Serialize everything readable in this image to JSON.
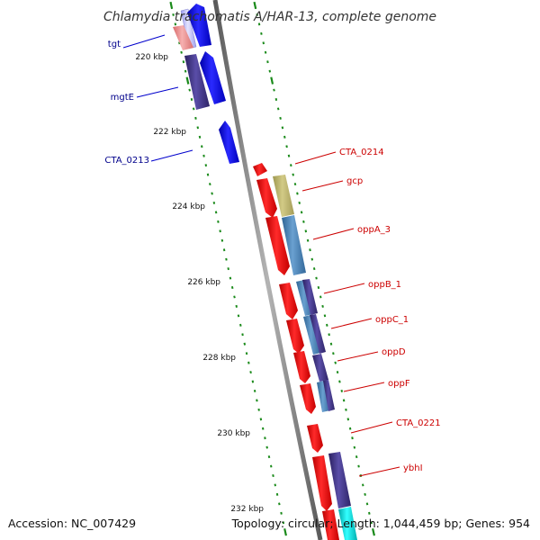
{
  "title": "Chlamydia trachomatis A/HAR-13, complete genome",
  "footer": {
    "accession": "Accession: NC_007429",
    "topology": "Topology: circular; Length: 1,044,459 bp; Genes: 954"
  },
  "ruler": {
    "labels": [
      "220 kbp",
      "222 kbp",
      "224 kbp",
      "226 kbp",
      "228 kbp",
      "230 kbp",
      "232 kbp"
    ]
  },
  "colors": {
    "forward_gene": "#0000ee",
    "reverse_gene": "#ee0000",
    "forward_label": "#00008b",
    "reverse_label": "#cc0000",
    "backbone": "#808080",
    "tick": "#1a8a1a"
  },
  "genes_left": [
    {
      "label": "tgt"
    },
    {
      "label": "mgtE"
    },
    {
      "label": "CTA_0213"
    }
  ],
  "genes_right": [
    {
      "label": "CTA_0214"
    },
    {
      "label": "gcp"
    },
    {
      "label": "oppA_3"
    },
    {
      "label": "oppB_1"
    },
    {
      "label": "oppC_1"
    },
    {
      "label": "oppD"
    },
    {
      "label": "oppF"
    },
    {
      "label": "CTA_0221"
    },
    {
      "label": "ybhI"
    }
  ]
}
